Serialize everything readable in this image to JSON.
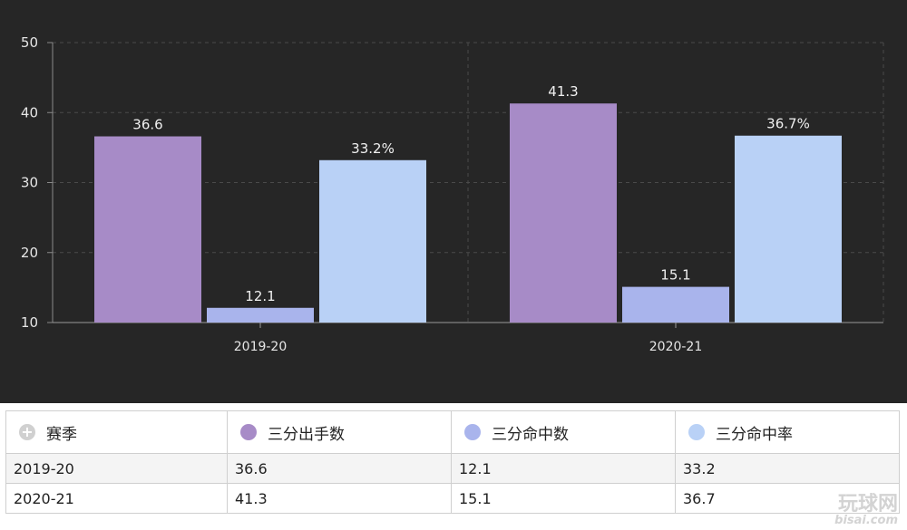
{
  "chart_data": {
    "type": "bar",
    "categories": [
      "2019-20",
      "2020-21"
    ],
    "series": [
      {
        "name": "三分出手数",
        "values": [
          36.6,
          41.3
        ],
        "labels": [
          "36.6",
          "41.3"
        ],
        "color": "#a78bc7"
      },
      {
        "name": "三分命中数",
        "values": [
          12.1,
          15.1
        ],
        "labels": [
          "12.1",
          "15.1"
        ],
        "color": "#a9b4ec"
      },
      {
        "name": "三分命中率",
        "values": [
          33.2,
          36.7
        ],
        "labels": [
          "33.2%",
          "36.7%"
        ],
        "color": "#b9d1f6"
      }
    ],
    "yticks": [
      "10",
      "20",
      "30",
      "40",
      "50"
    ],
    "ylim": [
      10,
      50
    ],
    "grid": true,
    "background": "#262626"
  },
  "table": {
    "headers": [
      "赛季",
      "三分出手数",
      "三分命中数",
      "三分命中率"
    ],
    "rows": [
      [
        "2019-20",
        "36.6",
        "12.1",
        "33.2"
      ],
      [
        "2020-21",
        "41.3",
        "15.1",
        "36.7"
      ]
    ]
  },
  "watermark": {
    "text": "玩球网",
    "site": "bisai.com"
  }
}
